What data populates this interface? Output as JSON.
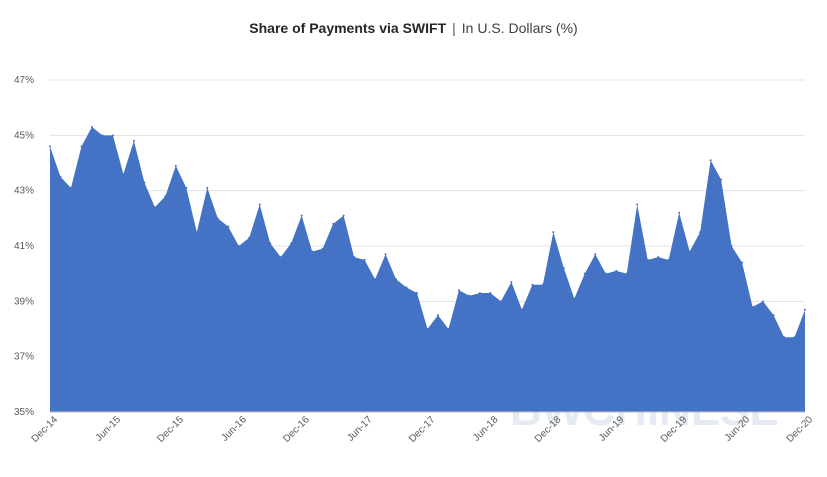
{
  "chart_data": {
    "type": "area",
    "title": "Share of Payments via SWIFT",
    "subtitle": "In U.S. Dollars (%)",
    "separator": "|",
    "watermark": "BWCHINESE",
    "xlabel": "",
    "ylabel": "",
    "ylim": [
      35,
      47
    ],
    "yticks": [
      "35%",
      "37%",
      "39%",
      "41%",
      "43%",
      "45%",
      "47%"
    ],
    "x_tick_labels": [
      "Dec-14",
      "Jun-15",
      "Dec-15",
      "Jun-16",
      "Dec-16",
      "Jun-17",
      "Dec-17",
      "Jun-18",
      "Dec-18",
      "Jun-19",
      "Dec-19",
      "Jun-20",
      "Dec-20"
    ],
    "grid": true,
    "color": "#4472C4",
    "series": [
      {
        "values": [
          44.6,
          43.5,
          43.1,
          44.6,
          45.3,
          45.0,
          45.0,
          43.6,
          44.8,
          43.3,
          42.4,
          42.8,
          43.9,
          43.1,
          41.5,
          43.1,
          42.0,
          41.7,
          41.0,
          41.3,
          42.5,
          41.1,
          40.6,
          41.1,
          42.1,
          40.8,
          40.9,
          41.8,
          42.1,
          40.6,
          40.5,
          39.8,
          40.7,
          39.8,
          39.5,
          39.3,
          38.0,
          38.5,
          38.0,
          39.4,
          39.2,
          39.3,
          39.3,
          39.0,
          39.7,
          38.7,
          39.6,
          39.6,
          41.5,
          40.2,
          39.1,
          40.0,
          40.7,
          40.0,
          40.1,
          40.0,
          42.5,
          40.5,
          40.6,
          40.5,
          42.2,
          40.8,
          41.5,
          44.1,
          43.4,
          41.0,
          40.4,
          38.8,
          39.0,
          38.5,
          37.7,
          37.7,
          38.7
        ]
      }
    ]
  }
}
